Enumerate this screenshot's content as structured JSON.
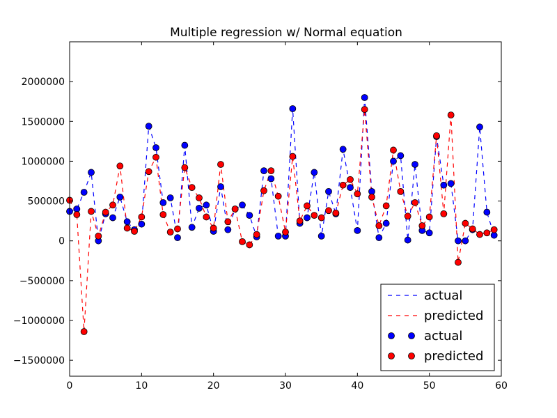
{
  "chart_data": {
    "type": "line",
    "title": "Multiple regression w/ Normal equation",
    "xlabel": "",
    "ylabel": "",
    "xlim": [
      0,
      60
    ],
    "ylim": [
      -1700000,
      2500000
    ],
    "x_ticks": [
      0,
      10,
      20,
      30,
      40,
      50,
      60
    ],
    "y_ticks": [
      -1500000,
      -1000000,
      -500000,
      0,
      500000,
      1000000,
      1500000,
      2000000
    ],
    "x_tick_labels": [
      "0",
      "10",
      "20",
      "30",
      "40",
      "50",
      "60"
    ],
    "y_tick_labels": [
      "−1500000",
      "−1000000",
      "−500000",
      "0",
      "500000",
      "1000000",
      "1500000",
      "2000000"
    ],
    "grid": false,
    "legend_position": "lower-right",
    "legend": [
      "actual",
      "predicted",
      "actual",
      "predicted"
    ],
    "series": [
      {
        "name": "actual",
        "color": "#0000ff",
        "values": [
          370000,
          400000,
          610000,
          860000,
          0,
          340000,
          290000,
          550000,
          240000,
          140000,
          210000,
          1440000,
          1170000,
          480000,
          540000,
          40000,
          1200000,
          170000,
          410000,
          450000,
          120000,
          680000,
          140000,
          400000,
          450000,
          320000,
          50000,
          880000,
          780000,
          60000,
          60000,
          1660000,
          220000,
          290000,
          860000,
          60000,
          620000,
          340000,
          1150000,
          670000,
          130000,
          1800000,
          620000,
          40000,
          220000,
          1000000,
          1070000,
          10000,
          960000,
          130000,
          100000,
          1310000,
          700000,
          720000,
          0,
          0,
          140000,
          1430000,
          360000,
          70000
        ]
      },
      {
        "name": "predicted",
        "color": "#ff0000",
        "values": [
          510000,
          330000,
          -1140000,
          370000,
          60000,
          360000,
          450000,
          940000,
          160000,
          120000,
          300000,
          870000,
          1050000,
          330000,
          110000,
          150000,
          920000,
          670000,
          540000,
          300000,
          160000,
          960000,
          240000,
          400000,
          -10000,
          -50000,
          80000,
          630000,
          880000,
          560000,
          110000,
          1060000,
          250000,
          440000,
          320000,
          290000,
          380000,
          350000,
          700000,
          770000,
          590000,
          1650000,
          550000,
          190000,
          440000,
          1140000,
          620000,
          310000,
          480000,
          190000,
          300000,
          1320000,
          340000,
          1580000,
          -270000,
          220000,
          150000,
          80000,
          100000,
          140000
        ]
      }
    ]
  }
}
